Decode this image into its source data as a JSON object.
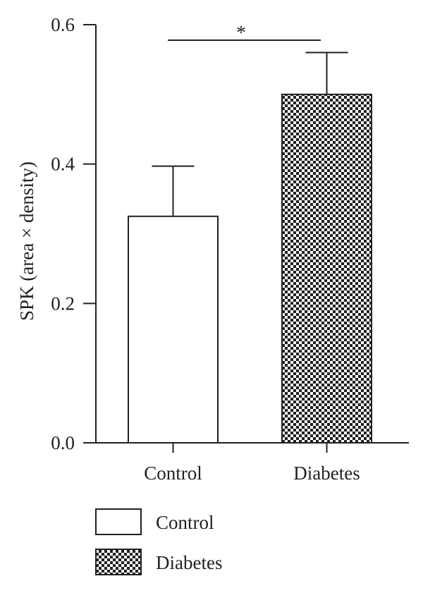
{
  "chart_data": {
    "type": "bar",
    "categories": [
      "Control",
      "Diabetes"
    ],
    "values": [
      0.325,
      0.5
    ],
    "error_upper": [
      0.397,
      0.56
    ],
    "ylabel": "SPK (area × density)",
    "xlabel": "",
    "ylim": [
      0.0,
      0.6
    ],
    "yticks": [
      "0.0",
      "0.2",
      "0.4",
      "0.6"
    ],
    "ytick_values": [
      0.0,
      0.2,
      0.4,
      0.6
    ],
    "grid": false,
    "legend": {
      "placement": "bottom-left",
      "entries": [
        "Control",
        "Diabetes"
      ]
    },
    "fills": [
      "white",
      "checkerboard"
    ],
    "significance": {
      "label": "*",
      "between": [
        "Control",
        "Diabetes"
      ]
    },
    "colors": {
      "axis": "#231f20",
      "bar_stroke": "#231f20"
    }
  }
}
